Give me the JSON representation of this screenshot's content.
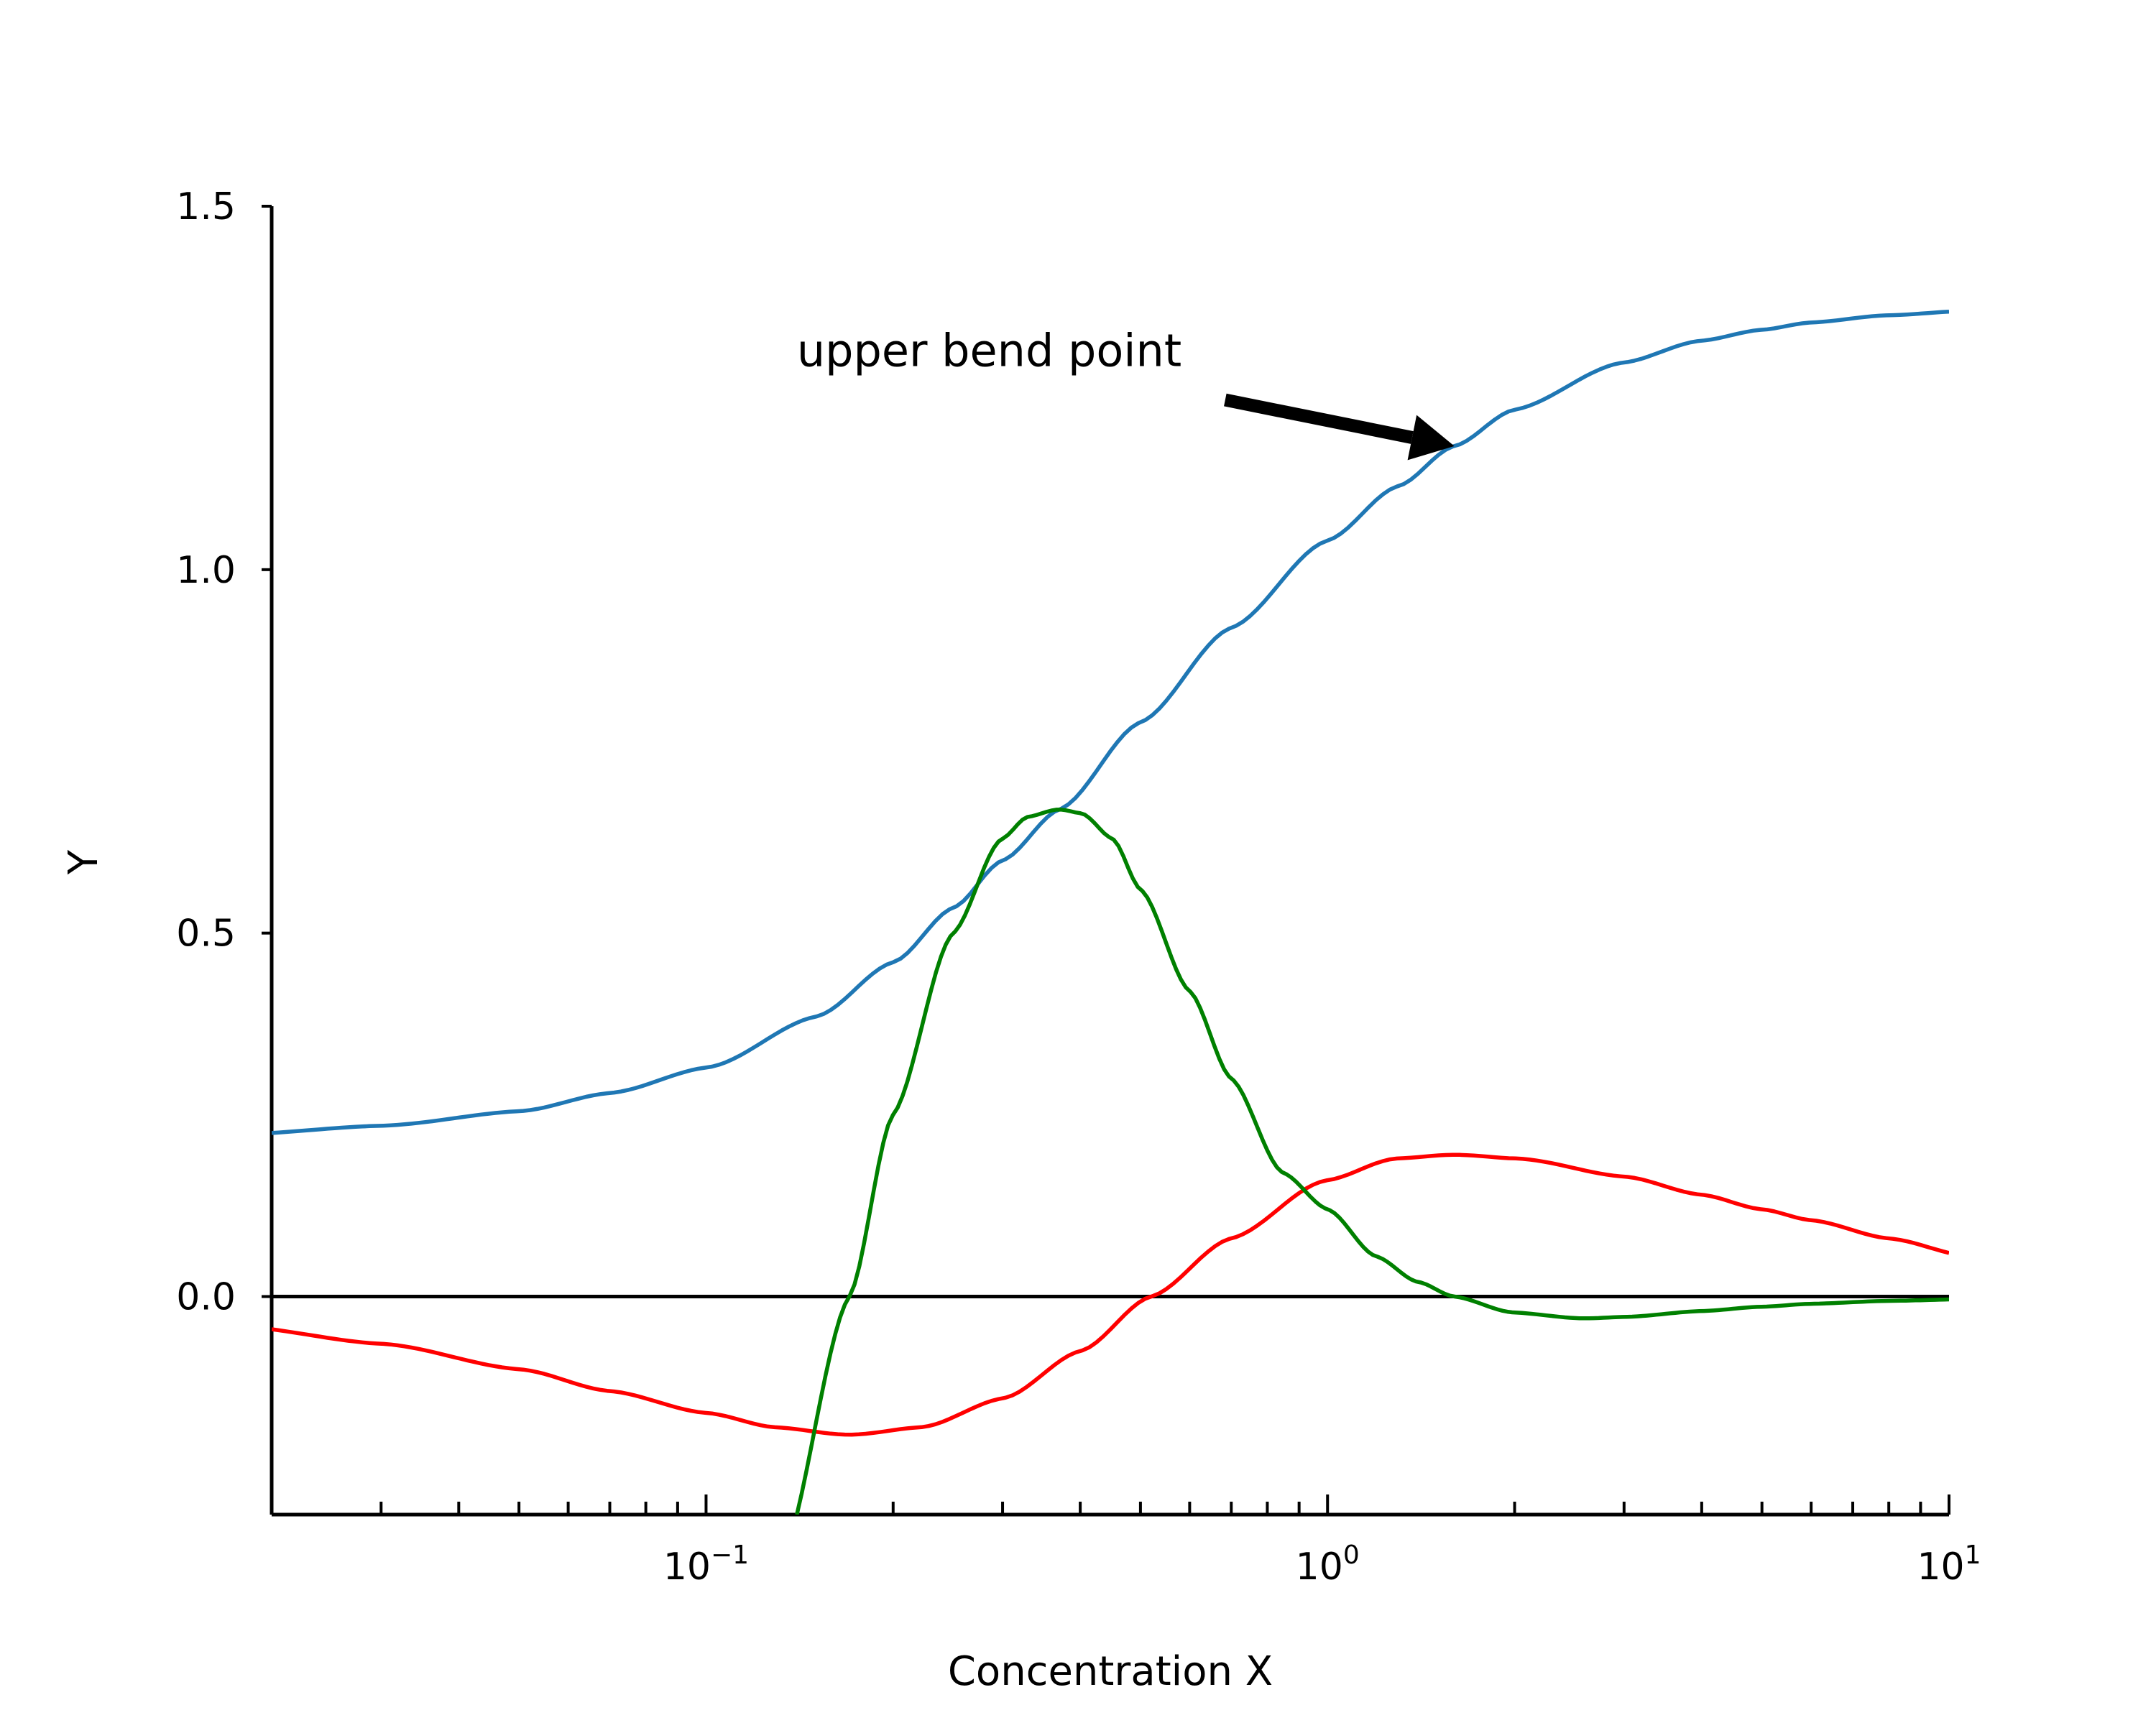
{
  "chart_data": {
    "type": "line",
    "title": "",
    "xlabel": "Concentration X",
    "ylabel": "Y",
    "xscale": "log",
    "xlim": [
      0.02,
      10
    ],
    "ylim": [
      -0.3,
      1.5
    ],
    "grid": false,
    "legend": "none",
    "y_ticks": [
      {
        "value": 0.0,
        "label": "0.0"
      },
      {
        "value": 0.5,
        "label": "0.5"
      },
      {
        "value": 1.0,
        "label": "1.0"
      },
      {
        "value": 1.5,
        "label": "1.5"
      }
    ],
    "x_major_ticks": [
      {
        "value": 0.1,
        "base": "10",
        "exp": "−1"
      },
      {
        "value": 1,
        "base": "10",
        "exp": "0"
      },
      {
        "value": 10,
        "base": "10",
        "exp": "1"
      }
    ],
    "reference_line": {
      "y": 0.0,
      "color": "#000000"
    },
    "series": [
      {
        "color": "#1f77b4",
        "x": [
          0.02,
          0.03,
          0.05,
          0.07,
          0.1,
          0.15,
          0.2,
          0.25,
          0.3,
          0.37,
          0.5,
          0.7,
          1.0,
          1.3,
          1.6,
          2.0,
          3.0,
          4.0,
          5.0,
          6.0,
          8.0,
          10.0
        ],
        "y": [
          0.225,
          0.235,
          0.255,
          0.28,
          0.315,
          0.385,
          0.46,
          0.535,
          0.6,
          0.67,
          0.79,
          0.92,
          1.04,
          1.115,
          1.17,
          1.22,
          1.285,
          1.315,
          1.33,
          1.34,
          1.35,
          1.355
        ]
      },
      {
        "color": "#ff0000",
        "x": [
          0.02,
          0.03,
          0.05,
          0.07,
          0.1,
          0.13,
          0.17,
          0.22,
          0.3,
          0.4,
          0.52,
          0.7,
          1.0,
          1.3,
          1.6,
          2.0,
          3.0,
          4.0,
          5.0,
          6.0,
          8.0,
          10.0
        ],
        "y": [
          -0.045,
          -0.065,
          -0.1,
          -0.13,
          -0.16,
          -0.18,
          -0.19,
          -0.18,
          -0.14,
          -0.075,
          0.0,
          0.08,
          0.16,
          0.19,
          0.195,
          0.19,
          0.165,
          0.14,
          0.12,
          0.105,
          0.08,
          0.06
        ]
      },
      {
        "color": "#008000",
        "x": [
          0.14,
          0.17,
          0.2,
          0.25,
          0.3,
          0.33,
          0.37,
          0.4,
          0.45,
          0.5,
          0.6,
          0.7,
          0.85,
          1.0,
          1.2,
          1.4,
          1.6,
          2.0,
          2.6,
          3.0,
          4.0,
          5.0,
          6.0,
          8.0,
          10.0
        ],
        "y": [
          -0.3,
          0.0,
          0.25,
          0.5,
          0.63,
          0.66,
          0.67,
          0.665,
          0.63,
          0.56,
          0.42,
          0.3,
          0.17,
          0.12,
          0.055,
          0.02,
          0.0,
          -0.022,
          -0.03,
          -0.028,
          -0.02,
          -0.014,
          -0.01,
          -0.006,
          -0.004
        ]
      }
    ],
    "annotations": [
      {
        "text": "upper bend point",
        "text_x": 0.14,
        "text_y": 1.28,
        "arrow_x": 1.6,
        "arrow_y": 1.17
      }
    ]
  }
}
